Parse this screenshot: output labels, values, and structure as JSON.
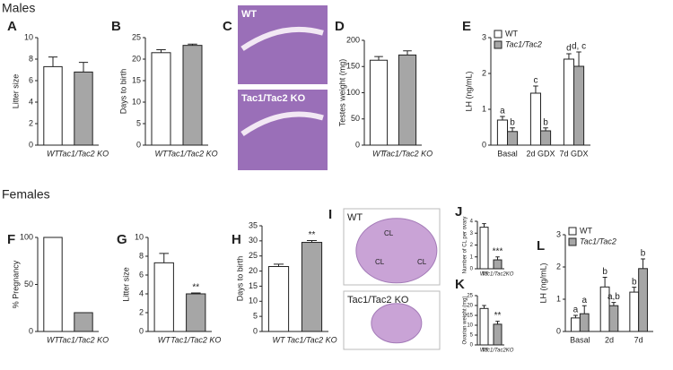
{
  "sections": [
    "Males",
    "Females"
  ],
  "image_panels": [
    {
      "panel": "C",
      "images": [
        {
          "label": "WT"
        },
        {
          "label": "Tac1/Tac2 KO"
        }
      ]
    },
    {
      "panel": "I",
      "images": [
        {
          "label": "WT",
          "annotations": [
            "CL",
            "CL",
            "CL"
          ]
        },
        {
          "label": "Tac1/Tac2 KO"
        }
      ]
    }
  ],
  "chart_data": [
    {
      "type": "bar",
      "panel": "A",
      "ylabel": "Litter size",
      "categories": [
        "WT",
        "Tac1/Tac2 KO"
      ],
      "values": [
        7.3,
        6.8
      ],
      "errors": [
        0.9,
        0.9
      ],
      "colors": [
        "#ffffff",
        "#a6a6a6"
      ],
      "ylim": [
        0,
        10
      ],
      "yticks": [
        0,
        2,
        4,
        6,
        8,
        10
      ]
    },
    {
      "type": "bar",
      "panel": "B",
      "ylabel": "Days to birth",
      "categories": [
        "WT",
        "Tac1/Tac2 KO"
      ],
      "values": [
        21.5,
        23.2
      ],
      "errors": [
        0.7,
        0.3
      ],
      "colors": [
        "#ffffff",
        "#a6a6a6"
      ],
      "ylim": [
        0,
        25
      ],
      "yticks": [
        0,
        5,
        10,
        15,
        20,
        25
      ]
    },
    {
      "type": "bar",
      "panel": "D",
      "ylabel": "Testes weight (mg)",
      "categories": [
        "WT",
        "Tac1/Tac2 KO"
      ],
      "values": [
        162,
        172
      ],
      "errors": [
        7,
        8
      ],
      "colors": [
        "#ffffff",
        "#a6a6a6"
      ],
      "ylim": [
        0,
        200
      ],
      "yticks": [
        0,
        50,
        100,
        150,
        200
      ]
    },
    {
      "type": "bar",
      "panel": "E",
      "ylabel": "LH (ng/mL)",
      "categories": [
        "Basal",
        "2d GDX",
        "7d GDX"
      ],
      "ylim": [
        0,
        3
      ],
      "yticks": [
        0,
        1,
        2,
        3
      ],
      "legend": "top-left",
      "series": [
        {
          "name": "WT",
          "color": "#ffffff",
          "values": [
            0.7,
            1.45,
            2.4
          ],
          "errors": [
            0.1,
            0.2,
            0.15
          ],
          "annotations": [
            "a",
            "c",
            "d"
          ]
        },
        {
          "name": "Tac1/Tac2",
          "color": "#a6a6a6",
          "values": [
            0.38,
            0.4,
            2.2
          ],
          "errors": [
            0.1,
            0.08,
            0.4
          ],
          "annotations": [
            "b",
            "b",
            "d, c"
          ]
        }
      ]
    },
    {
      "type": "bar",
      "panel": "F",
      "ylabel": "% Pregnancy",
      "categories": [
        "WT",
        "Tac1/Tac2 KO"
      ],
      "values": [
        100,
        20
      ],
      "colors": [
        "#ffffff",
        "#a6a6a6"
      ],
      "ylim": [
        0,
        100
      ],
      "yticks": [
        0,
        50,
        100
      ]
    },
    {
      "type": "bar",
      "panel": "G",
      "ylabel": "Litter size",
      "categories": [
        "WT",
        "Tac1/Tac2 KO"
      ],
      "values": [
        7.3,
        4.0
      ],
      "errors": [
        1.0,
        0.1
      ],
      "annotations": [
        null,
        "**"
      ],
      "colors": [
        "#ffffff",
        "#a6a6a6"
      ],
      "ylim": [
        0,
        10
      ],
      "yticks": [
        0,
        2,
        4,
        6,
        8,
        10
      ]
    },
    {
      "type": "bar",
      "panel": "H",
      "ylabel": "Days to birth",
      "categories": [
        "WT",
        "Tac1/Tac2 KO"
      ],
      "values": [
        21.5,
        29.5
      ],
      "errors": [
        0.8,
        0.6
      ],
      "annotations": [
        null,
        "**"
      ],
      "colors": [
        "#ffffff",
        "#a6a6a6"
      ],
      "ylim": [
        0,
        35
      ],
      "yticks": [
        0,
        5,
        10,
        15,
        20,
        25,
        30,
        35
      ]
    },
    {
      "type": "bar",
      "panel": "J",
      "ylabel": "Number of CL per ovary",
      "categories": [
        "WT",
        "Tac1/Tac2KO"
      ],
      "values": [
        3.5,
        0.75
      ],
      "errors": [
        0.3,
        0.25
      ],
      "annotations": [
        null,
        "***"
      ],
      "colors": [
        "#ffffff",
        "#a6a6a6"
      ],
      "ylim": [
        0,
        4
      ],
      "yticks": [
        0,
        1,
        2,
        3,
        4
      ]
    },
    {
      "type": "bar",
      "panel": "K",
      "ylabel": "Ovarian weight (mg)",
      "categories": [
        "WT",
        "Tac1/Tac2KO"
      ],
      "values": [
        18.5,
        10.5
      ],
      "errors": [
        1.5,
        1.5
      ],
      "annotations": [
        null,
        "**"
      ],
      "colors": [
        "#ffffff",
        "#a6a6a6"
      ],
      "ylim": [
        0,
        25
      ],
      "yticks": [
        0,
        5,
        10,
        15,
        20,
        25
      ]
    },
    {
      "type": "bar",
      "panel": "L",
      "ylabel": "LH (ng/mL)",
      "categories": [
        "Basal",
        "2d",
        "7d"
      ],
      "ylim": [
        0,
        3
      ],
      "yticks": [
        0,
        1,
        2,
        3
      ],
      "legend": "top-left",
      "series": [
        {
          "name": "WT",
          "color": "#ffffff",
          "values": [
            0.42,
            1.38,
            1.22
          ],
          "errors": [
            0.08,
            0.3,
            0.15
          ],
          "annotations": [
            "a",
            "b",
            "b"
          ]
        },
        {
          "name": "Tac1/Tac2",
          "color": "#a6a6a6",
          "values": [
            0.55,
            0.8,
            1.95
          ],
          "errors": [
            0.25,
            0.1,
            0.3
          ],
          "annotations": [
            "a",
            "a,b",
            "b"
          ]
        }
      ]
    }
  ]
}
